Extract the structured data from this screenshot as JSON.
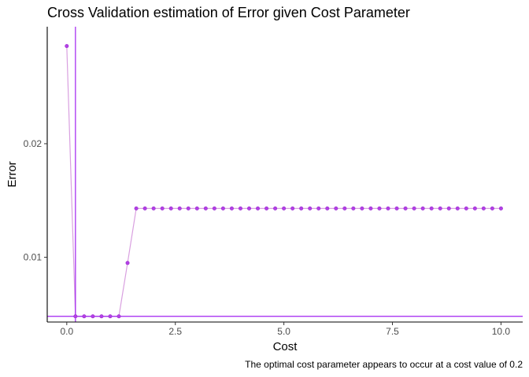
{
  "chart_data": {
    "type": "line",
    "title": "Cross Validation estimation of Error given Cost Parameter",
    "xlabel": "Cost",
    "ylabel": "Error",
    "caption": "The optimal cost parameter appears to occur at a cost value of 0.2",
    "xlim": [
      -0.45,
      10.5
    ],
    "ylim": [
      0.0043,
      0.0303
    ],
    "x_ticks": [
      0.0,
      2.5,
      5.0,
      7.5,
      10.0
    ],
    "x_tick_labels": [
      "0.0",
      "2.5",
      "5.0",
      "7.5",
      "10.0"
    ],
    "y_ticks": [
      0.01,
      0.02
    ],
    "y_tick_labels": [
      "0.01",
      "0.02"
    ],
    "grid": false,
    "legend": "none",
    "colors": {
      "line": "#d9a0e0",
      "point": "#b340e6",
      "point_stroke": "#9b2fcf",
      "ref_line": "#a020f0",
      "axis": "#000000"
    },
    "reference_lines": {
      "vertical_x": 0.2,
      "horizontal_y": 0.0048
    },
    "series": [
      {
        "x": [
          0.0,
          0.2,
          0.4,
          0.6,
          0.8,
          1.0,
          1.2,
          1.4,
          1.6,
          1.8,
          2.0,
          2.2,
          2.4,
          2.6,
          2.8,
          3.0,
          3.2,
          3.4,
          3.6,
          3.8,
          4.0,
          4.2,
          4.4,
          4.6,
          4.8,
          5.0,
          5.2,
          5.4,
          5.6,
          5.8,
          6.0,
          6.2,
          6.4,
          6.6,
          6.8,
          7.0,
          7.2,
          7.4,
          7.6,
          7.8,
          8.0,
          8.2,
          8.4,
          8.6,
          8.8,
          9.0,
          9.2,
          9.4,
          9.6,
          9.8,
          10.0
        ],
        "values": [
          0.0286,
          0.0048,
          0.0048,
          0.0048,
          0.0048,
          0.0048,
          0.0048,
          0.0095,
          0.0143,
          0.0143,
          0.0143,
          0.0143,
          0.0143,
          0.0143,
          0.0143,
          0.0143,
          0.0143,
          0.0143,
          0.0143,
          0.0143,
          0.0143,
          0.0143,
          0.0143,
          0.0143,
          0.0143,
          0.0143,
          0.0143,
          0.0143,
          0.0143,
          0.0143,
          0.0143,
          0.0143,
          0.0143,
          0.0143,
          0.0143,
          0.0143,
          0.0143,
          0.0143,
          0.0143,
          0.0143,
          0.0143,
          0.0143,
          0.0143,
          0.0143,
          0.0143,
          0.0143,
          0.0143,
          0.0143,
          0.0143,
          0.0143,
          0.0143
        ]
      }
    ]
  }
}
